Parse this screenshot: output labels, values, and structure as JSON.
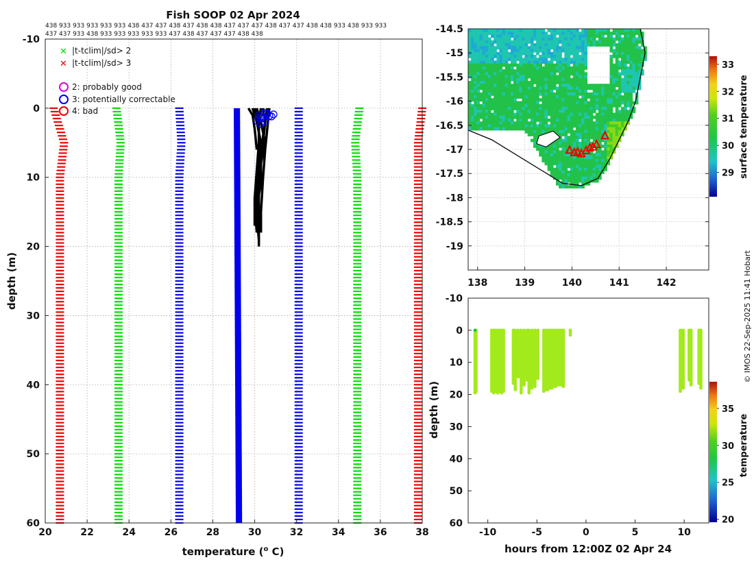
{
  "title": "Fish SOOP 02 Apr 2024",
  "id_rows": [
    "438 933 933 933 933 933 438 437 437 438 437 438 438 437 437 437 438 437 437 438 438 933 438 933 933",
    "437 437 933 438 933 933 933 933 933 437 438 437 437 437 438 438"
  ],
  "credit": "© IMOS 22-Sep-2025 11:41 Hobart",
  "chart_data": [
    {
      "name": "profile",
      "type": "line",
      "xlabel": "temperature (",
      "xlabel_sup": "o",
      "xlabel_tail": " C)",
      "ylabel": "depth (m)",
      "xlim": [
        20,
        38
      ],
      "ylim": [
        -10,
        60
      ],
      "xticks": [
        20,
        22,
        24,
        26,
        28,
        30,
        32,
        34,
        36,
        38
      ],
      "yticks": [
        -10,
        0,
        10,
        20,
        30,
        40,
        50,
        60
      ],
      "grid": true,
      "legend": [
        {
          "symbol": "x",
          "color": "#00dd00",
          "label": "|t-tclim|/sd> 2"
        },
        {
          "symbol": "x",
          "color": "#ee0000",
          "label": "|t-tclim|/sd> 3"
        },
        {
          "symbol": "o",
          "color": "#dd00dd",
          "label": "2: probably good"
        },
        {
          "symbol": "o",
          "color": "#0000ee",
          "label": "3: potentially correctable"
        },
        {
          "symbol": "o",
          "color": "#ee0000",
          "label": "4: bad"
        }
      ],
      "climatology_series": [
        {
          "name": "sd3-low",
          "color": "#ee0000",
          "depth": [
            0,
            5,
            10,
            20,
            30,
            40,
            50,
            60
          ],
          "temp": [
            20.4,
            20.9,
            20.7,
            20.7,
            20.7,
            20.7,
            20.7,
            20.7
          ]
        },
        {
          "name": "sd2-low",
          "color": "#00dd00",
          "depth": [
            0,
            5,
            10,
            20,
            30,
            40,
            50,
            60
          ],
          "temp": [
            23.4,
            23.6,
            23.5,
            23.5,
            23.5,
            23.5,
            23.5,
            23.5
          ]
        },
        {
          "name": "ref-low",
          "color": "#0000ee",
          "depth": [
            0,
            5,
            10,
            20,
            30,
            40,
            50,
            60
          ],
          "temp": [
            26.4,
            26.5,
            26.4,
            26.4,
            26.4,
            26.4,
            26.4,
            26.4
          ]
        },
        {
          "name": "ref-high",
          "color": "#0000ee",
          "depth": [
            0,
            5,
            10,
            20,
            30,
            40,
            50,
            60
          ],
          "temp": [
            32.1,
            32.1,
            32.1,
            32.1,
            32.1,
            32.1,
            32.1,
            32.1
          ]
        },
        {
          "name": "sd2-high",
          "color": "#00dd00",
          "depth": [
            0,
            5,
            10,
            20,
            30,
            40,
            50,
            60
          ],
          "temp": [
            35.0,
            34.8,
            34.9,
            34.9,
            34.9,
            34.9,
            34.9,
            34.9
          ]
        },
        {
          "name": "sd3-high",
          "color": "#ee0000",
          "depth": [
            0,
            5,
            10,
            20,
            30,
            40,
            50,
            60
          ],
          "temp": [
            38.0,
            37.8,
            37.8,
            37.8,
            37.8,
            37.8,
            37.8,
            37.8
          ]
        }
      ],
      "climatology_mean": {
        "color": "#0000ee",
        "depth": [
          0,
          60
        ],
        "temp_min": [
          29.0,
          29.1
        ],
        "temp_max": [
          29.3,
          29.4
        ]
      },
      "profiles": {
        "color": "#000000",
        "lines": [
          {
            "depth": [
              0,
              2,
              5,
              8,
              12,
              16,
              19
            ],
            "temp": [
              29.9,
              30.1,
              30.3,
              30.2,
              30.1,
              30.1,
              30.2
            ]
          },
          {
            "depth": [
              0,
              2,
              5,
              8,
              12,
              16,
              20
            ],
            "temp": [
              30.1,
              30.3,
              30.5,
              30.3,
              30.2,
              30.2,
              30.2
            ]
          },
          {
            "depth": [
              0,
              2,
              5,
              8,
              12,
              16
            ],
            "temp": [
              30.4,
              30.5,
              30.4,
              30.2,
              30.1,
              30.1
            ]
          },
          {
            "depth": [
              0,
              2,
              4,
              7,
              11,
              14
            ],
            "temp": [
              30.6,
              30.5,
              30.4,
              30.3,
              30.3,
              30.1
            ]
          },
          {
            "depth": [
              0,
              2,
              5,
              9,
              13,
              17
            ],
            "temp": [
              30.0,
              30.2,
              30.2,
              30.1,
              30.0,
              30.0
            ]
          },
          {
            "depth": [
              0,
              3,
              6,
              10,
              15,
              18
            ],
            "temp": [
              30.7,
              30.6,
              30.5,
              30.4,
              30.3,
              30.3
            ]
          },
          {
            "depth": [
              0,
              2,
              6,
              10,
              14,
              18
            ],
            "temp": [
              30.3,
              30.2,
              30.2,
              30.1,
              30.0,
              30.1
            ]
          },
          {
            "depth": [
              0,
              1,
              3,
              6
            ],
            "temp": [
              29.7,
              29.9,
              30.0,
              30.1
            ]
          }
        ],
        "flag_circles": {
          "color": "#0000ee",
          "depth": [
            1.0,
            1.3,
            0.8,
            1.5,
            2.0,
            1.2,
            0.9,
            1.8,
            1.1,
            2.3,
            0.7,
            1.4
          ],
          "temp": [
            30.2,
            30.4,
            30.6,
            30.3,
            30.5,
            30.8,
            30.9,
            30.1,
            30.7,
            30.3,
            30.5,
            30.2
          ]
        }
      }
    },
    {
      "name": "map",
      "type": "heatmap",
      "xlim": [
        137.8,
        142.9
      ],
      "ylim": [
        -19.5,
        -14.5
      ],
      "xticks": [
        138,
        139,
        140,
        141,
        142
      ],
      "yticks": [
        -14.5,
        -15,
        -15.5,
        -16,
        -16.5,
        -17,
        -17.5,
        -18,
        -18.5,
        -19
      ],
      "colorbar": {
        "label": "surface temperature",
        "ticks": [
          29,
          30,
          31,
          32,
          33
        ],
        "range": [
          28.1,
          33.3
        ]
      },
      "track_points": {
        "color": "#ee0000",
        "lon": [
          139.95,
          140.05,
          140.12,
          140.2,
          140.3,
          140.38,
          140.45,
          140.52,
          140.7
        ],
        "lat": [
          -17.02,
          -17.07,
          -17.06,
          -17.09,
          -17.03,
          -16.97,
          -16.95,
          -16.9,
          -16.72
        ]
      }
    },
    {
      "name": "timeseries",
      "type": "scatter",
      "xlabel": "hours from 12:00Z 02 Apr 24",
      "ylabel": "depth (m)",
      "xlim": [
        -12,
        12.5
      ],
      "ylim": [
        -10,
        60
      ],
      "xticks": [
        -10,
        -5,
        0,
        5,
        10
      ],
      "yticks": [
        -10,
        0,
        10,
        20,
        30,
        40,
        50,
        60
      ],
      "colorbar": {
        "label": "temperature",
        "ticks": [
          20,
          25,
          30,
          35
        ],
        "range": [
          19.6,
          38.6
        ]
      },
      "casts": [
        {
          "hour": -11.3,
          "max_depth": 19.5
        },
        {
          "hour": -11.2,
          "max_depth": 19.0
        },
        {
          "hour": -9.6,
          "max_depth": 19.2
        },
        {
          "hour": -9.4,
          "max_depth": 19.5
        },
        {
          "hour": -9.2,
          "max_depth": 19.3
        },
        {
          "hour": -9.0,
          "max_depth": 19.6
        },
        {
          "hour": -8.8,
          "max_depth": 19.4
        },
        {
          "hour": -8.6,
          "max_depth": 19.5
        },
        {
          "hour": -8.4,
          "max_depth": 19.0
        },
        {
          "hour": -7.4,
          "max_depth": 16.5
        },
        {
          "hour": -7.2,
          "max_depth": 18.8
        },
        {
          "hour": -6.9,
          "max_depth": 14.5
        },
        {
          "hour": -6.6,
          "max_depth": 19.5
        },
        {
          "hour": -6.3,
          "max_depth": 17.0
        },
        {
          "hour": -6.0,
          "max_depth": 15.5
        },
        {
          "hour": -5.8,
          "max_depth": 19.6
        },
        {
          "hour": -5.5,
          "max_depth": 18.0
        },
        {
          "hour": -5.2,
          "max_depth": 17.5
        },
        {
          "hour": -4.9,
          "max_depth": 15.0
        },
        {
          "hour": -4.3,
          "max_depth": 19.4
        },
        {
          "hour": -4.1,
          "max_depth": 18.8
        },
        {
          "hour": -3.9,
          "max_depth": 18.5
        },
        {
          "hour": -3.7,
          "max_depth": 18.2
        },
        {
          "hour": -3.5,
          "max_depth": 18.0
        },
        {
          "hour": -3.3,
          "max_depth": 17.5
        },
        {
          "hour": -3.1,
          "max_depth": 17.8
        },
        {
          "hour": -2.9,
          "max_depth": 17.0
        },
        {
          "hour": -2.7,
          "max_depth": 17.3
        },
        {
          "hour": -2.5,
          "max_depth": 17.0
        },
        {
          "hour": -2.3,
          "max_depth": 17.5
        },
        {
          "hour": -1.6,
          "max_depth": 1.5
        },
        {
          "hour": 9.6,
          "max_depth": 19.0
        },
        {
          "hour": 9.9,
          "max_depth": 18.0
        },
        {
          "hour": 10.5,
          "max_depth": 15.5
        },
        {
          "hour": 10.7,
          "max_depth": 17.0
        },
        {
          "hour": 11.5,
          "max_depth": 16.5
        },
        {
          "hour": 11.7,
          "max_depth": 18.0
        }
      ],
      "point_color": "#a3ea1c",
      "surface_point": {
        "hour": -11.3,
        "depth": 0,
        "color": "#17c64b"
      }
    }
  ]
}
